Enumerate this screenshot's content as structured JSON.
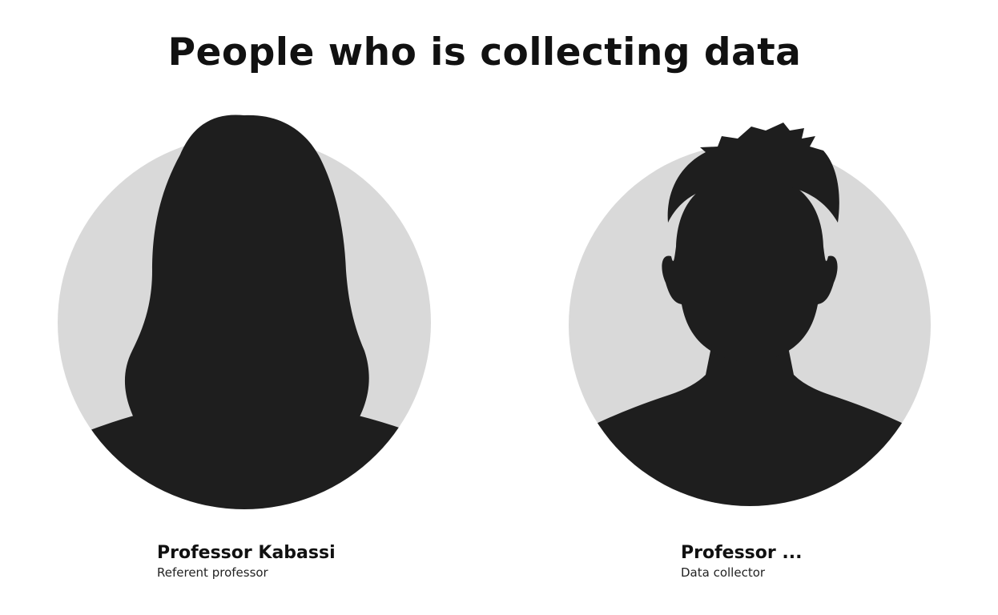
{
  "page": {
    "title": "People who is collecting data"
  },
  "people": [
    {
      "name": "Professor Kabassi",
      "role": "Referent professor",
      "avatar_icon": "female-silhouette-avatar-icon"
    },
    {
      "name": "Professor ...",
      "role": "Data collector",
      "avatar_icon": "male-silhouette-avatar-icon"
    }
  ],
  "colors": {
    "avatar_background": "#d9d9d9",
    "silhouette": "#1e1e1e",
    "text": "#111111"
  }
}
